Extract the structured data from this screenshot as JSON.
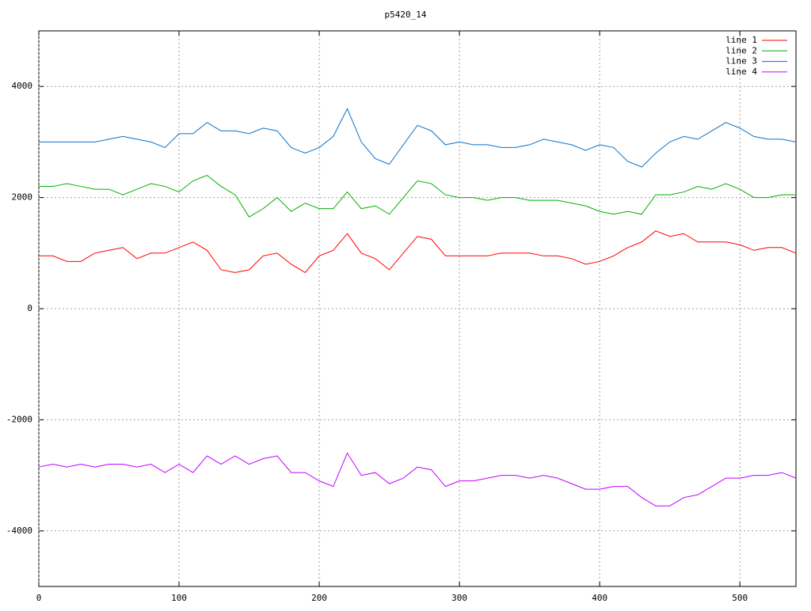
{
  "chart_data": {
    "type": "line",
    "title": "p5420_14",
    "x": [
      0,
      10,
      20,
      30,
      40,
      50,
      60,
      70,
      80,
      90,
      100,
      110,
      120,
      130,
      140,
      150,
      160,
      170,
      180,
      190,
      200,
      210,
      220,
      230,
      240,
      250,
      260,
      270,
      280,
      290,
      300,
      310,
      320,
      330,
      340,
      350,
      360,
      370,
      380,
      390,
      400,
      410,
      420,
      430,
      440,
      450,
      460,
      470,
      480,
      490,
      500,
      510,
      520,
      530,
      540
    ],
    "series": [
      {
        "name": "line 1",
        "color": "#ff0000",
        "values": [
          950,
          950,
          850,
          850,
          1000,
          1050,
          1100,
          900,
          1000,
          1000,
          1100,
          1200,
          1050,
          700,
          650,
          700,
          950,
          1000,
          800,
          650,
          950,
          1050,
          1350,
          1000,
          900,
          700,
          1000,
          1300,
          1250,
          950,
          950,
          950,
          950,
          1000,
          1000,
          1000,
          950,
          950,
          900,
          800,
          850,
          950,
          1100,
          1200,
          1400,
          1300,
          1350,
          1200,
          1200,
          1200,
          1150,
          1050,
          1100,
          1100,
          1000
        ]
      },
      {
        "name": "line 2",
        "color": "#00b000",
        "values": [
          2200,
          2200,
          2250,
          2200,
          2150,
          2150,
          2050,
          2150,
          2250,
          2200,
          2100,
          2300,
          2400,
          2200,
          2050,
          1650,
          1800,
          2000,
          1750,
          1900,
          1800,
          1800,
          2100,
          1800,
          1850,
          1700,
          2000,
          2300,
          2250,
          2050,
          2000,
          2000,
          1950,
          2000,
          2000,
          1950,
          1950,
          1950,
          1900,
          1850,
          1750,
          1700,
          1750,
          1700,
          2050,
          2050,
          2100,
          2200,
          2150,
          2250,
          2150,
          2000,
          2000,
          2050,
          2050
        ]
      },
      {
        "name": "line 3",
        "color": "#0a72c8",
        "values": [
          3000,
          3000,
          3000,
          3000,
          3000,
          3050,
          3100,
          3050,
          3000,
          2900,
          3150,
          3150,
          3350,
          3200,
          3200,
          3150,
          3250,
          3200,
          2900,
          2800,
          2900,
          3100,
          3600,
          3000,
          2700,
          2600,
          2950,
          3300,
          3200,
          2950,
          3000,
          2950,
          2950,
          2900,
          2900,
          2950,
          3050,
          3000,
          2950,
          2850,
          2950,
          2900,
          2650,
          2550,
          2800,
          3000,
          3100,
          3050,
          3200,
          3350,
          3250,
          3100,
          3050,
          3050,
          3000
        ]
      },
      {
        "name": "line 4",
        "color": "#c000ff",
        "values": [
          -2850,
          -2800,
          -2850,
          -2800,
          -2850,
          -2800,
          -2800,
          -2850,
          -2800,
          -2950,
          -2800,
          -2950,
          -2650,
          -2800,
          -2650,
          -2800,
          -2700,
          -2650,
          -2950,
          -2950,
          -3100,
          -3200,
          -2600,
          -3000,
          -2950,
          -3150,
          -3050,
          -2850,
          -2900,
          -3200,
          -3100,
          -3100,
          -3050,
          -3000,
          -3000,
          -3050,
          -3000,
          -3050,
          -3150,
          -3250,
          -3250,
          -3200,
          -3200,
          -3400,
          -3550,
          -3550,
          -3400,
          -3350,
          -3200,
          -3050,
          -3050,
          -3000,
          -3000,
          -2950,
          -3050
        ]
      }
    ],
    "xlim": [
      0,
      540
    ],
    "xticks": [
      0,
      100,
      200,
      300,
      400,
      500
    ],
    "ylim": [
      -5000,
      5000
    ],
    "yticks": [
      -4000,
      -2000,
      0,
      2000,
      4000
    ],
    "grid": true,
    "legend": "top-right"
  }
}
